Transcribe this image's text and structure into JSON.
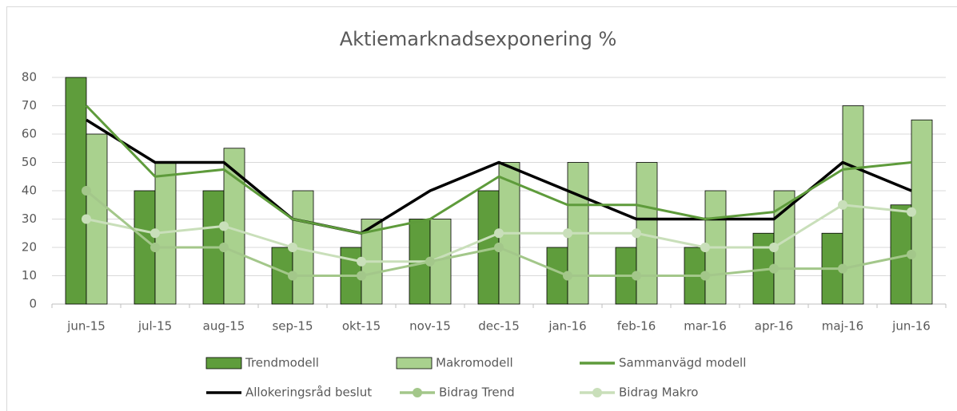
{
  "chart_data": {
    "type": "bar",
    "title": "Aktiemarknadsexponering %",
    "categories": [
      "jun-15",
      "jul-15",
      "aug-15",
      "sep-15",
      "okt-15",
      "nov-15",
      "dec-15",
      "jan-16",
      "feb-16",
      "mar-16",
      "apr-16",
      "maj-16",
      "jun-16"
    ],
    "series": [
      {
        "name": "Trendmodell",
        "type": "bar",
        "color": "#5f9d3c",
        "values": [
          80,
          40,
          40,
          20,
          20,
          30,
          40,
          20,
          20,
          20,
          25,
          25,
          35
        ]
      },
      {
        "name": "Makromodell",
        "type": "bar",
        "color": "#a9d18e",
        "values": [
          60,
          50,
          55,
          40,
          30,
          30,
          50,
          50,
          50,
          40,
          40,
          70,
          65
        ]
      },
      {
        "name": "Sammanvägd modell",
        "type": "line",
        "color": "#5e9b3b",
        "marker": false,
        "values": [
          70,
          45,
          47.5,
          30,
          25,
          30,
          45,
          35,
          35,
          30,
          32.5,
          47.5,
          50
        ]
      },
      {
        "name": "Allokeringsråd beslut",
        "type": "line",
        "color": "#000000",
        "marker": false,
        "values": [
          65,
          50,
          50,
          30,
          25,
          40,
          50,
          40,
          30,
          30,
          30,
          50,
          40
        ]
      },
      {
        "name": "Bidrag Trend",
        "type": "line",
        "color": "#a3c78a",
        "marker": true,
        "values": [
          40,
          20,
          20,
          10,
          10,
          15,
          20,
          10,
          10,
          10,
          12.5,
          12.5,
          17.5
        ]
      },
      {
        "name": "Bidrag Makro",
        "type": "line",
        "color": "#c9dfba",
        "marker": true,
        "values": [
          30,
          25,
          27.5,
          20,
          15,
          15,
          25,
          25,
          25,
          20,
          20,
          35,
          32.5
        ]
      }
    ],
    "ylim": [
      0,
      80
    ],
    "yticks": [
      0,
      10,
      20,
      30,
      40,
      50,
      60,
      70,
      80
    ],
    "grid": true,
    "legend": "bottom"
  }
}
